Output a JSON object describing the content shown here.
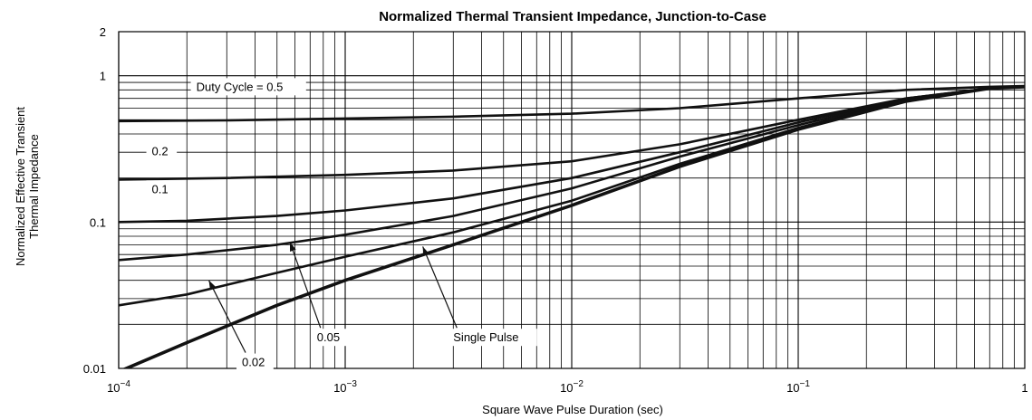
{
  "chart_data": {
    "type": "line",
    "title": "Normalized Thermal Transient Impedance, Junction-to-Case",
    "xlabel": "Square Wave Pulse Duration (sec)",
    "ylabel": [
      "Normalized Effective Transient",
      "Thermal Impedance"
    ],
    "x_scale": "log",
    "y_scale": "log",
    "xlim": [
      0.0001,
      1
    ],
    "ylim": [
      0.01,
      2
    ],
    "grid": true,
    "x_ticks": [
      {
        "value": 0.0001,
        "base": "10",
        "exp": "−4"
      },
      {
        "value": 0.001,
        "base": "10",
        "exp": "−3"
      },
      {
        "value": 0.01,
        "base": "10",
        "exp": "−2"
      },
      {
        "value": 0.1,
        "base": "10",
        "exp": "−1"
      },
      {
        "value": 1,
        "base": "1",
        "exp": ""
      }
    ],
    "y_ticks": [
      {
        "value": 0.01,
        "label": "0.01"
      },
      {
        "value": 0.1,
        "label": "0.1"
      },
      {
        "value": 1,
        "label": "1"
      },
      {
        "value": 2,
        "label": "2"
      }
    ],
    "series": [
      {
        "name": "Duty Cycle = 0.5",
        "width": 2.6,
        "points": [
          [
            0.0001,
            0.49
          ],
          [
            0.0003,
            0.495
          ],
          [
            0.001,
            0.51
          ],
          [
            0.003,
            0.525
          ],
          [
            0.01,
            0.55
          ],
          [
            0.03,
            0.6
          ],
          [
            0.1,
            0.7
          ],
          [
            0.3,
            0.8
          ],
          [
            0.7,
            0.84
          ],
          [
            1,
            0.85
          ]
        ]
      },
      {
        "name": "0.2",
        "width": 2.6,
        "points": [
          [
            0.0001,
            0.195
          ],
          [
            0.0003,
            0.2
          ],
          [
            0.001,
            0.21
          ],
          [
            0.003,
            0.225
          ],
          [
            0.01,
            0.26
          ],
          [
            0.03,
            0.34
          ],
          [
            0.1,
            0.5
          ],
          [
            0.3,
            0.7
          ],
          [
            0.7,
            0.82
          ],
          [
            1,
            0.84
          ]
        ]
      },
      {
        "name": "0.1",
        "width": 2.6,
        "points": [
          [
            0.0001,
            0.1
          ],
          [
            0.0002,
            0.102
          ],
          [
            0.0005,
            0.11
          ],
          [
            0.001,
            0.12
          ],
          [
            0.003,
            0.145
          ],
          [
            0.01,
            0.2
          ],
          [
            0.03,
            0.3
          ],
          [
            0.1,
            0.48
          ],
          [
            0.3,
            0.7
          ],
          [
            0.7,
            0.82
          ],
          [
            1,
            0.84
          ]
        ]
      },
      {
        "name": "0.05",
        "width": 2.6,
        "points": [
          [
            0.0001,
            0.055
          ],
          [
            0.0002,
            0.06
          ],
          [
            0.0005,
            0.07
          ],
          [
            0.001,
            0.082
          ],
          [
            0.003,
            0.11
          ],
          [
            0.01,
            0.17
          ],
          [
            0.03,
            0.28
          ],
          [
            0.1,
            0.46
          ],
          [
            0.3,
            0.69
          ],
          [
            0.7,
            0.82
          ],
          [
            1,
            0.84
          ]
        ]
      },
      {
        "name": "0.02",
        "width": 2.6,
        "points": [
          [
            0.0001,
            0.027
          ],
          [
            0.0002,
            0.032
          ],
          [
            0.0005,
            0.045
          ],
          [
            0.001,
            0.058
          ],
          [
            0.003,
            0.085
          ],
          [
            0.01,
            0.14
          ],
          [
            0.03,
            0.25
          ],
          [
            0.1,
            0.44
          ],
          [
            0.3,
            0.68
          ],
          [
            0.7,
            0.82
          ],
          [
            1,
            0.84
          ]
        ]
      },
      {
        "name": "Single Pulse",
        "width": 3.6,
        "points": [
          [
            0.0001,
            0.0095
          ],
          [
            0.0002,
            0.015
          ],
          [
            0.0005,
            0.027
          ],
          [
            0.001,
            0.04
          ],
          [
            0.003,
            0.07
          ],
          [
            0.01,
            0.13
          ],
          [
            0.03,
            0.24
          ],
          [
            0.1,
            0.43
          ],
          [
            0.3,
            0.67
          ],
          [
            0.7,
            0.82
          ],
          [
            1,
            0.84
          ]
        ]
      }
    ],
    "annotations": [
      {
        "text": "Duty Cycle = 0.5",
        "for": "Duty Cycle = 0.5",
        "at": [
          0.00022,
          0.8
        ]
      },
      {
        "text": "0.2",
        "for": "0.2",
        "at": [
          0.00014,
          0.29
        ]
      },
      {
        "text": "0.1",
        "for": "0.1",
        "at": [
          0.00014,
          0.16
        ]
      },
      {
        "text": "0.05",
        "for": "0.05",
        "at": [
          0.00075,
          0.0155
        ],
        "arrow_to": [
          0.00057,
          0.073
        ]
      },
      {
        "text": "Single Pulse",
        "for": "Single Pulse",
        "at": [
          0.003,
          0.0155
        ],
        "arrow_to": [
          0.0022,
          0.068
        ]
      },
      {
        "text": "0.02",
        "for": "0.02",
        "at": [
          0.00035,
          0.0105
        ],
        "arrow_to": [
          0.00025,
          0.04
        ]
      }
    ]
  }
}
